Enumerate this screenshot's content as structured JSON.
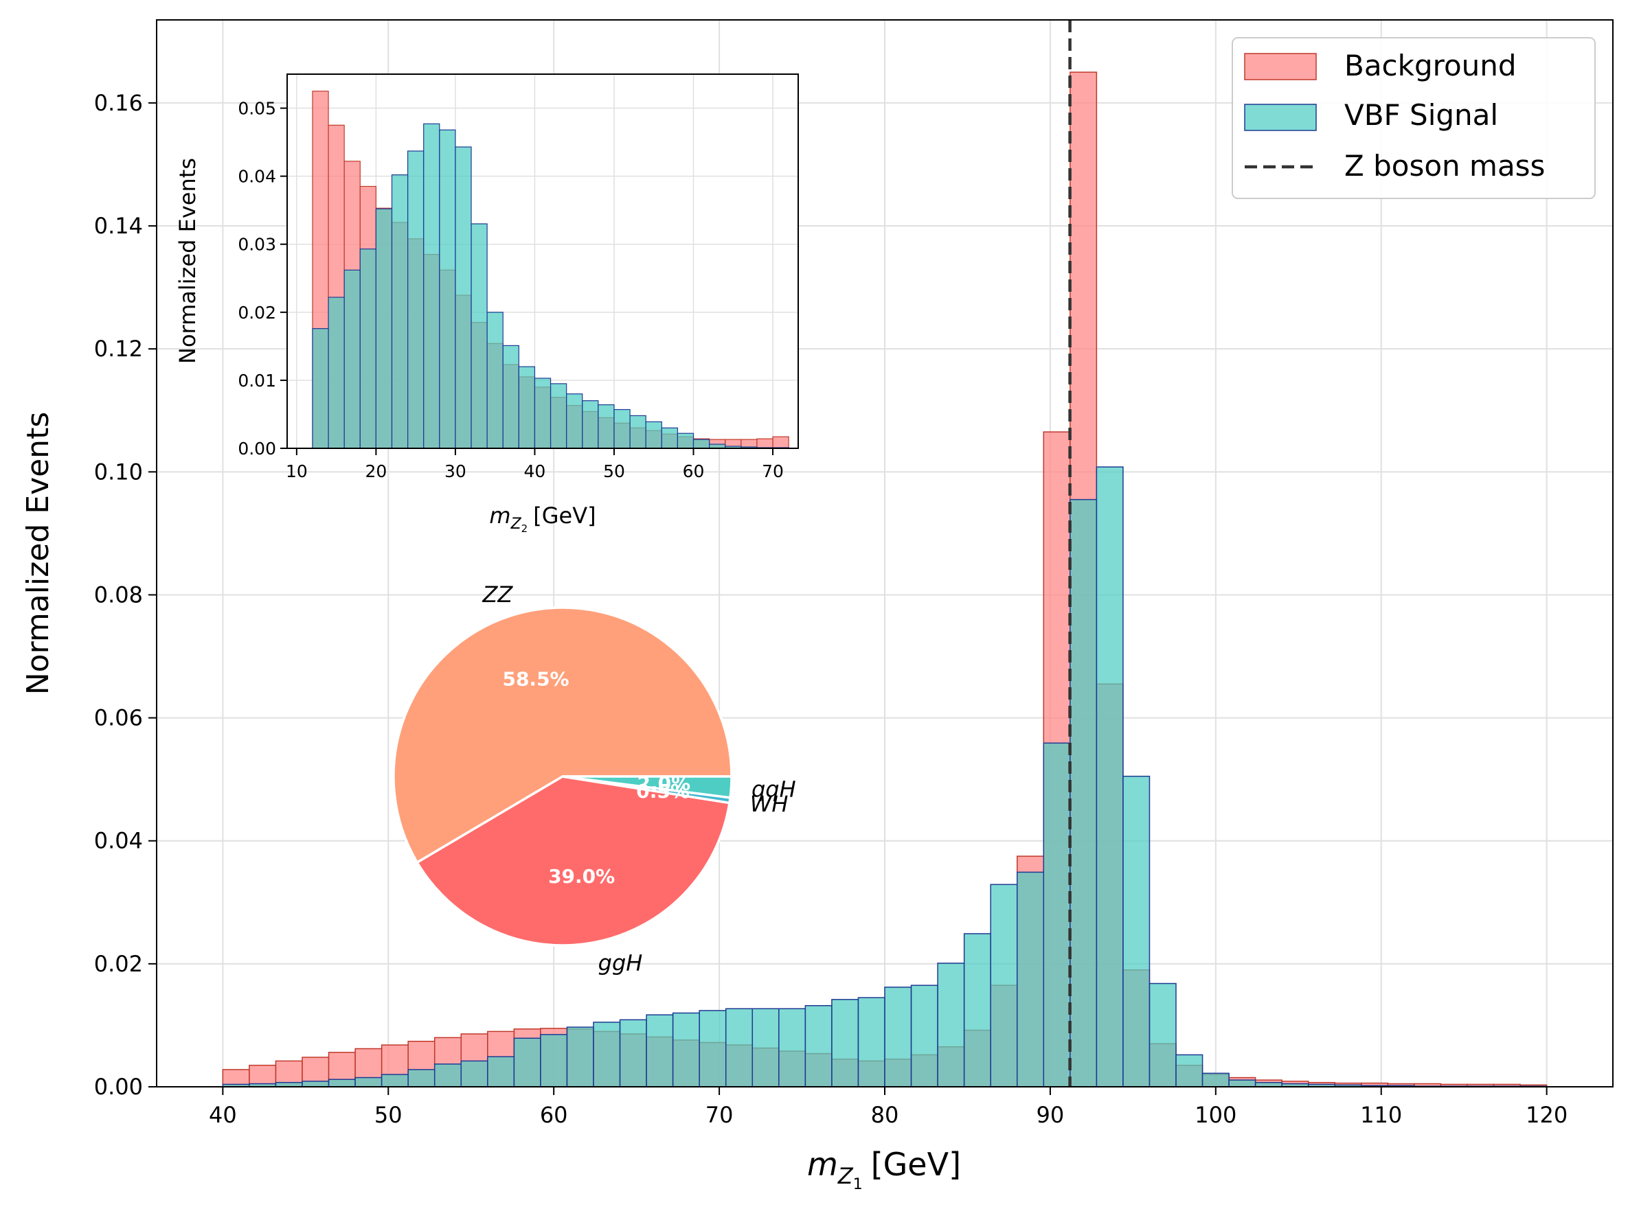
{
  "chart_data": [
    {
      "type": "bar",
      "subtype": "histogram",
      "title": "",
      "xlabel": "m",
      "xlabel_sub": "Z",
      "xlabel_subsub": "1",
      "xlabel_unit": "[GeV]",
      "ylabel": "Normalized Events",
      "xlim": [
        36,
        124
      ],
      "ylim": [
        0,
        0.1735
      ],
      "xticks": [
        40,
        50,
        60,
        70,
        80,
        90,
        100,
        110,
        120
      ],
      "xtick_labels": [
        "40",
        "50",
        "60",
        "70",
        "80",
        "90",
        "100",
        "110",
        "120"
      ],
      "yticks": [
        0.0,
        0.02,
        0.04,
        0.06,
        0.08,
        0.1,
        0.12,
        0.14,
        0.16
      ],
      "ytick_labels": [
        "0.00",
        "0.02",
        "0.04",
        "0.06",
        "0.08",
        "0.10",
        "0.12",
        "0.14",
        "0.16"
      ],
      "grid": true,
      "bin_start": 40,
      "bin_width": 1.6,
      "series": [
        {
          "name": "Background",
          "color": "#ff8a8a",
          "edge": "#c0392b",
          "values": [
            0.0028,
            0.0035,
            0.0042,
            0.0048,
            0.0056,
            0.0062,
            0.0068,
            0.0074,
            0.008,
            0.0086,
            0.009,
            0.0094,
            0.0095,
            0.0094,
            0.009,
            0.0086,
            0.0081,
            0.0076,
            0.0072,
            0.0068,
            0.0063,
            0.0058,
            0.0054,
            0.0045,
            0.0042,
            0.0045,
            0.0052,
            0.0065,
            0.0092,
            0.0165,
            0.0375,
            0.1065,
            0.165,
            0.0655,
            0.019,
            0.007,
            0.0035,
            0.002,
            0.0015,
            0.0011,
            0.0009,
            0.0007,
            0.0006,
            0.0006,
            0.0005,
            0.0005,
            0.0004,
            0.0004,
            0.0004,
            0.0003
          ]
        },
        {
          "name": "VBF Signal",
          "color": "#4ecdc4",
          "edge": "#1f3a93",
          "values": [
            0.0004,
            0.0005,
            0.0007,
            0.0009,
            0.0012,
            0.0015,
            0.002,
            0.0028,
            0.0037,
            0.0042,
            0.0049,
            0.0079,
            0.0085,
            0.0097,
            0.0105,
            0.0109,
            0.0117,
            0.012,
            0.0124,
            0.0127,
            0.0127,
            0.0127,
            0.0132,
            0.0142,
            0.0145,
            0.0162,
            0.0165,
            0.0201,
            0.0249,
            0.0329,
            0.0349,
            0.0559,
            0.0955,
            0.1008,
            0.0505,
            0.0168,
            0.0052,
            0.0022,
            0.0011,
            0.0007,
            0.0005,
            0.0004,
            0.0003,
            0.0002,
            0.0002,
            0.0001,
            0.0001,
            0.0001,
            0.0001,
            0.0001
          ]
        }
      ],
      "reference_line": {
        "name": "Z boson mass",
        "x": 91.19,
        "color": "#333333",
        "style": "dashed"
      },
      "legend": [
        "Background",
        "VBF Signal",
        "Z boson mass"
      ],
      "legend_position": "top-right"
    },
    {
      "type": "bar",
      "subtype": "histogram-inset",
      "xlabel": "m",
      "xlabel_sub": "Z",
      "xlabel_subsub": "2",
      "xlabel_unit": "[GeV]",
      "ylabel": "Normalized Events",
      "xlim": [
        8.8,
        73.2
      ],
      "ylim": [
        0,
        0.055
      ],
      "xticks": [
        10,
        20,
        30,
        40,
        50,
        60,
        70
      ],
      "xtick_labels": [
        "10",
        "20",
        "30",
        "40",
        "50",
        "60",
        "70"
      ],
      "yticks": [
        0.0,
        0.01,
        0.02,
        0.03,
        0.04,
        0.05
      ],
      "ytick_labels": [
        "0.00",
        "0.01",
        "0.02",
        "0.03",
        "0.04",
        "0.05"
      ],
      "grid": true,
      "bin_start": 12,
      "bin_width": 2,
      "series": [
        {
          "name": "Background",
          "values": [
            0.0525,
            0.0475,
            0.0422,
            0.0385,
            0.0353,
            0.0332,
            0.0308,
            0.0285,
            0.0262,
            0.0225,
            0.0185,
            0.0154,
            0.0123,
            0.0105,
            0.009,
            0.0075,
            0.0063,
            0.0054,
            0.0045,
            0.0037,
            0.003,
            0.0026,
            0.0021,
            0.0017,
            0.0014,
            0.0013,
            0.0013,
            0.0013,
            0.0014,
            0.0017
          ]
        },
        {
          "name": "VBF Signal",
          "values": [
            0.0176,
            0.0222,
            0.0262,
            0.0293,
            0.0352,
            0.0402,
            0.0437,
            0.0477,
            0.0468,
            0.0443,
            0.033,
            0.02,
            0.0151,
            0.012,
            0.0103,
            0.0095,
            0.008,
            0.007,
            0.0064,
            0.0057,
            0.0048,
            0.0039,
            0.003,
            0.0022,
            0.0013,
            0.0006,
            0.0003,
            0.0002,
            0.0001,
            0.0001
          ]
        }
      ]
    },
    {
      "type": "pie",
      "slices": [
        {
          "label": "ZZ",
          "value": 58.5,
          "pct_label": "58.5%",
          "color": "#ffa07a"
        },
        {
          "label": "ggH",
          "value": 39.0,
          "pct_label": "39.0%",
          "color": "#ff6b6b"
        },
        {
          "label": "WH",
          "value": 0.5,
          "pct_label": "0.5%",
          "color": "#45b7d1"
        },
        {
          "label": "qqH",
          "value": 2.0,
          "pct_label": "2.0%",
          "color": "#4ecdc4"
        }
      ]
    }
  ]
}
